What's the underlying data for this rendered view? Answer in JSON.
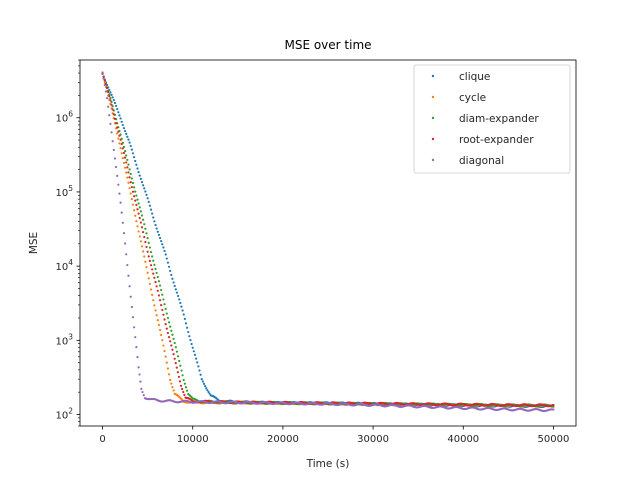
{
  "chart_data": {
    "type": "scatter",
    "title": "MSE over time",
    "xlabel": "Time (s)",
    "ylabel": "MSE",
    "xlim": [
      -2500,
      52500
    ],
    "ylim": [
      70,
      6000000
    ],
    "yscale": "log",
    "grid": false,
    "legend_position": "top-right",
    "x_ticks": [
      {
        "value": 0,
        "label": "0"
      },
      {
        "value": 10000,
        "label": "10000"
      },
      {
        "value": 20000,
        "label": "20000"
      },
      {
        "value": 30000,
        "label": "30000"
      },
      {
        "value": 40000,
        "label": "40000"
      },
      {
        "value": 50000,
        "label": "50000"
      }
    ],
    "y_ticks": [
      {
        "value": 100,
        "base": "10",
        "exp": "2"
      },
      {
        "value": 1000,
        "base": "10",
        "exp": "3"
      },
      {
        "value": 10000,
        "base": "10",
        "exp": "4"
      },
      {
        "value": 100000,
        "base": "10",
        "exp": "5"
      },
      {
        "value": 1000000,
        "base": "10",
        "exp": "6"
      }
    ],
    "series": [
      {
        "name": "clique",
        "color": "#1f77b4",
        "points": [
          [
            0,
            4000000
          ],
          [
            1000,
            2000000
          ],
          [
            2000,
            1000000
          ],
          [
            3000,
            450000
          ],
          [
            4000,
            190000
          ],
          [
            5000,
            80000
          ],
          [
            6000,
            33000
          ],
          [
            7000,
            14000
          ],
          [
            8000,
            5500
          ],
          [
            9000,
            2200
          ],
          [
            10000,
            800
          ],
          [
            11000,
            300
          ],
          [
            12000,
            180
          ],
          [
            13000,
            152
          ],
          [
            15000,
            147
          ],
          [
            20000,
            143
          ],
          [
            25000,
            142
          ],
          [
            30000,
            139
          ],
          [
            35000,
            136
          ],
          [
            40000,
            133
          ],
          [
            45000,
            131
          ],
          [
            50000,
            129
          ]
        ]
      },
      {
        "name": "cycle",
        "color": "#ff7f0e",
        "points": [
          [
            0,
            4000000
          ],
          [
            1000,
            1300000
          ],
          [
            2000,
            400000
          ],
          [
            3000,
            110000
          ],
          [
            4000,
            30000
          ],
          [
            5000,
            8000
          ],
          [
            6000,
            2200
          ],
          [
            7000,
            600
          ],
          [
            7500,
            300
          ],
          [
            8000,
            190
          ],
          [
            9000,
            150
          ],
          [
            10000,
            146
          ],
          [
            15000,
            144
          ],
          [
            20000,
            142
          ],
          [
            25000,
            140
          ],
          [
            30000,
            138
          ],
          [
            35000,
            136
          ],
          [
            40000,
            134
          ],
          [
            45000,
            132
          ],
          [
            50000,
            131
          ]
        ]
      },
      {
        "name": "diam-expander",
        "color": "#2ca02c",
        "points": [
          [
            0,
            4000000
          ],
          [
            1000,
            1600000
          ],
          [
            2000,
            600000
          ],
          [
            3000,
            200000
          ],
          [
            4000,
            70000
          ],
          [
            5000,
            24000
          ],
          [
            6000,
            8000
          ],
          [
            7000,
            2700
          ],
          [
            8000,
            900
          ],
          [
            9000,
            300
          ],
          [
            9500,
            190
          ],
          [
            10000,
            160
          ],
          [
            11000,
            150
          ],
          [
            15000,
            145
          ],
          [
            20000,
            143
          ],
          [
            25000,
            141
          ],
          [
            30000,
            139
          ],
          [
            35000,
            137
          ],
          [
            40000,
            135
          ],
          [
            45000,
            133
          ],
          [
            50000,
            132
          ]
        ]
      },
      {
        "name": "root-expander",
        "color": "#d62728",
        "points": [
          [
            0,
            4000000
          ],
          [
            1000,
            1500000
          ],
          [
            2000,
            500000
          ],
          [
            3000,
            160000
          ],
          [
            4000,
            50000
          ],
          [
            5000,
            16000
          ],
          [
            6000,
            5200
          ],
          [
            7000,
            1700
          ],
          [
            8000,
            550
          ],
          [
            8700,
            250
          ],
          [
            9200,
            170
          ],
          [
            10000,
            150
          ],
          [
            15000,
            146
          ],
          [
            20000,
            144
          ],
          [
            25000,
            142
          ],
          [
            30000,
            140
          ],
          [
            35000,
            138
          ],
          [
            40000,
            136
          ],
          [
            45000,
            134
          ],
          [
            50000,
            133
          ]
        ]
      },
      {
        "name": "diagonal",
        "color": "#9467bd",
        "points": [
          [
            0,
            4000000
          ],
          [
            500,
            1800000
          ],
          [
            1000,
            650000
          ],
          [
            1500,
            220000
          ],
          [
            2000,
            70000
          ],
          [
            2500,
            20000
          ],
          [
            3000,
            5500
          ],
          [
            3500,
            1500
          ],
          [
            4000,
            420
          ],
          [
            4300,
            220
          ],
          [
            4700,
            170
          ],
          [
            5500,
            158
          ],
          [
            7000,
            152
          ],
          [
            10000,
            148
          ],
          [
            15000,
            145
          ],
          [
            20000,
            142
          ],
          [
            25000,
            139
          ],
          [
            30000,
            134
          ],
          [
            35000,
            128
          ],
          [
            40000,
            122
          ],
          [
            45000,
            117
          ],
          [
            50000,
            114
          ]
        ]
      }
    ]
  }
}
